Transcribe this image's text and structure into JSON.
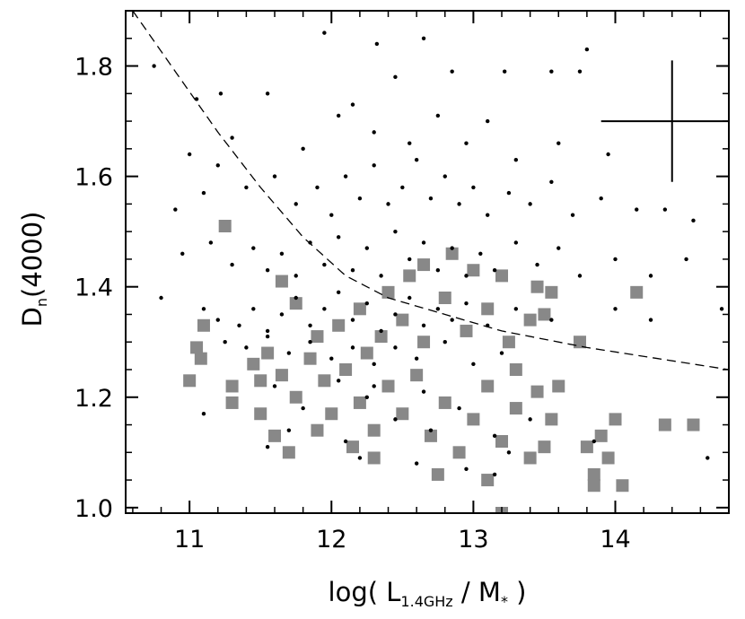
{
  "chart_data": {
    "type": "scatter",
    "title": "",
    "xlabel": {
      "prefix": "log( L",
      "sub": "1.4GHz",
      "mid": " / M",
      "sub2": "*",
      "suffix": " )"
    },
    "ylabel": {
      "prefix": "D",
      "sub": "n",
      "suffix": "(4000)"
    },
    "xlim": [
      10.55,
      14.8
    ],
    "ylim": [
      0.99,
      1.9
    ],
    "xticks": [
      {
        "value": 11,
        "label": "11"
      },
      {
        "value": 12,
        "label": "12"
      },
      {
        "value": 13,
        "label": "13"
      },
      {
        "value": 14,
        "label": "14"
      }
    ],
    "yticks": [
      {
        "value": 1.0,
        "label": "1.0"
      },
      {
        "value": 1.2,
        "label": "1.2"
      },
      {
        "value": 1.4,
        "label": "1.4"
      },
      {
        "value": 1.6,
        "label": "1.6"
      },
      {
        "value": 1.8,
        "label": "1.8"
      }
    ],
    "grid": false,
    "dashed_line": [
      [
        10.6,
        1.9
      ],
      [
        10.9,
        1.79
      ],
      [
        11.2,
        1.68
      ],
      [
        11.5,
        1.58
      ],
      [
        11.8,
        1.49
      ],
      [
        12.1,
        1.42
      ],
      [
        12.4,
        1.38
      ],
      [
        12.8,
        1.35
      ],
      [
        13.2,
        1.32
      ],
      [
        13.8,
        1.29
      ],
      [
        14.3,
        1.27
      ],
      [
        14.8,
        1.25
      ]
    ],
    "error_bar": {
      "x": 14.4,
      "y": 1.7,
      "x_err": 0.5,
      "y_err": 0.11
    },
    "series": [
      {
        "marker": "dot",
        "color": "#000000",
        "points": [
          [
            10.75,
            1.8
          ],
          [
            11.05,
            1.74
          ],
          [
            11.22,
            1.75
          ],
          [
            11.55,
            1.75
          ],
          [
            11.95,
            1.86
          ],
          [
            12.32,
            1.84
          ],
          [
            12.45,
            1.78
          ],
          [
            12.65,
            1.85
          ],
          [
            12.85,
            1.79
          ],
          [
            13.22,
            1.79
          ],
          [
            13.55,
            1.79
          ],
          [
            13.75,
            1.79
          ],
          [
            13.8,
            1.83
          ],
          [
            11.0,
            1.64
          ],
          [
            11.3,
            1.67
          ],
          [
            11.8,
            1.65
          ],
          [
            12.05,
            1.71
          ],
          [
            12.15,
            1.73
          ],
          [
            12.3,
            1.68
          ],
          [
            12.55,
            1.66
          ],
          [
            12.75,
            1.71
          ],
          [
            12.95,
            1.66
          ],
          [
            13.1,
            1.7
          ],
          [
            13.3,
            1.63
          ],
          [
            13.6,
            1.66
          ],
          [
            13.95,
            1.64
          ],
          [
            10.9,
            1.54
          ],
          [
            11.1,
            1.57
          ],
          [
            11.2,
            1.62
          ],
          [
            11.4,
            1.58
          ],
          [
            11.6,
            1.6
          ],
          [
            11.75,
            1.55
          ],
          [
            11.9,
            1.58
          ],
          [
            12.0,
            1.53
          ],
          [
            12.1,
            1.6
          ],
          [
            12.2,
            1.56
          ],
          [
            12.3,
            1.62
          ],
          [
            12.4,
            1.55
          ],
          [
            12.5,
            1.58
          ],
          [
            12.6,
            1.63
          ],
          [
            12.7,
            1.56
          ],
          [
            12.8,
            1.6
          ],
          [
            12.9,
            1.55
          ],
          [
            13.0,
            1.58
          ],
          [
            13.1,
            1.53
          ],
          [
            13.25,
            1.57
          ],
          [
            13.4,
            1.55
          ],
          [
            13.55,
            1.59
          ],
          [
            13.7,
            1.53
          ],
          [
            13.9,
            1.56
          ],
          [
            14.15,
            1.54
          ],
          [
            14.35,
            1.54
          ],
          [
            14.55,
            1.52
          ],
          [
            10.95,
            1.46
          ],
          [
            11.15,
            1.48
          ],
          [
            11.3,
            1.44
          ],
          [
            11.45,
            1.47
          ],
          [
            11.55,
            1.43
          ],
          [
            11.65,
            1.46
          ],
          [
            11.75,
            1.42
          ],
          [
            11.85,
            1.48
          ],
          [
            11.95,
            1.44
          ],
          [
            12.05,
            1.49
          ],
          [
            12.15,
            1.43
          ],
          [
            12.25,
            1.47
          ],
          [
            12.35,
            1.42
          ],
          [
            12.45,
            1.5
          ],
          [
            12.55,
            1.45
          ],
          [
            12.65,
            1.48
          ],
          [
            12.75,
            1.43
          ],
          [
            12.85,
            1.47
          ],
          [
            12.95,
            1.42
          ],
          [
            13.05,
            1.46
          ],
          [
            13.15,
            1.43
          ],
          [
            13.3,
            1.48
          ],
          [
            13.45,
            1.44
          ],
          [
            13.6,
            1.47
          ],
          [
            13.75,
            1.42
          ],
          [
            14.0,
            1.45
          ],
          [
            14.25,
            1.42
          ],
          [
            14.5,
            1.45
          ],
          [
            10.8,
            1.38
          ],
          [
            11.1,
            1.36
          ],
          [
            11.2,
            1.34
          ],
          [
            11.35,
            1.33
          ],
          [
            11.45,
            1.36
          ],
          [
            11.55,
            1.32
          ],
          [
            11.65,
            1.35
          ],
          [
            11.75,
            1.38
          ],
          [
            11.85,
            1.33
          ],
          [
            11.95,
            1.36
          ],
          [
            12.05,
            1.39
          ],
          [
            12.15,
            1.34
          ],
          [
            12.25,
            1.37
          ],
          [
            12.35,
            1.32
          ],
          [
            12.45,
            1.35
          ],
          [
            12.55,
            1.38
          ],
          [
            12.65,
            1.33
          ],
          [
            12.75,
            1.36
          ],
          [
            12.85,
            1.34
          ],
          [
            12.95,
            1.37
          ],
          [
            13.1,
            1.33
          ],
          [
            13.3,
            1.36
          ],
          [
            13.55,
            1.34
          ],
          [
            14.0,
            1.36
          ],
          [
            14.25,
            1.34
          ],
          [
            14.75,
            1.36
          ],
          [
            11.25,
            1.3
          ],
          [
            11.4,
            1.29
          ],
          [
            11.55,
            1.31
          ],
          [
            11.7,
            1.28
          ],
          [
            11.85,
            1.3
          ],
          [
            12.0,
            1.27
          ],
          [
            12.15,
            1.29
          ],
          [
            12.3,
            1.26
          ],
          [
            12.45,
            1.29
          ],
          [
            12.6,
            1.27
          ],
          [
            12.8,
            1.3
          ],
          [
            13.0,
            1.26
          ],
          [
            13.2,
            1.28
          ],
          [
            11.1,
            1.17
          ],
          [
            11.6,
            1.22
          ],
          [
            11.8,
            1.18
          ],
          [
            12.05,
            1.23
          ],
          [
            12.25,
            1.2
          ],
          [
            12.45,
            1.16
          ],
          [
            12.65,
            1.21
          ],
          [
            12.9,
            1.18
          ],
          [
            13.15,
            1.13
          ],
          [
            13.4,
            1.16
          ],
          [
            11.55,
            1.11
          ],
          [
            12.1,
            1.12
          ],
          [
            12.7,
            1.14
          ],
          [
            13.25,
            1.1
          ],
          [
            11.7,
            1.14
          ],
          [
            12.3,
            1.22
          ],
          [
            14.65,
            1.09
          ],
          [
            13.85,
            1.12
          ],
          [
            12.95,
            1.07
          ],
          [
            12.2,
            1.09
          ],
          [
            12.6,
            1.08
          ],
          [
            13.15,
            1.06
          ]
        ]
      },
      {
        "marker": "square",
        "color": "#888888",
        "points": [
          [
            11.25,
            1.51
          ],
          [
            11.1,
            1.33
          ],
          [
            11.05,
            1.29
          ],
          [
            11.0,
            1.23
          ],
          [
            11.08,
            1.27
          ],
          [
            11.3,
            1.19
          ],
          [
            11.3,
            1.22
          ],
          [
            11.45,
            1.26
          ],
          [
            11.55,
            1.28
          ],
          [
            11.5,
            1.17
          ],
          [
            11.65,
            1.24
          ],
          [
            11.75,
            1.2
          ],
          [
            11.85,
            1.27
          ],
          [
            11.6,
            1.13
          ],
          [
            11.7,
            1.1
          ],
          [
            11.95,
            1.23
          ],
          [
            12.0,
            1.17
          ],
          [
            12.1,
            1.25
          ],
          [
            12.2,
            1.19
          ],
          [
            12.3,
            1.14
          ],
          [
            12.15,
            1.11
          ],
          [
            12.25,
            1.28
          ],
          [
            12.4,
            1.22
          ],
          [
            12.5,
            1.17
          ],
          [
            12.6,
            1.24
          ],
          [
            12.7,
            1.13
          ],
          [
            12.8,
            1.19
          ],
          [
            12.9,
            1.1
          ],
          [
            13.0,
            1.16
          ],
          [
            13.1,
            1.22
          ],
          [
            13.2,
            1.12
          ],
          [
            13.3,
            1.18
          ],
          [
            13.4,
            1.09
          ],
          [
            13.5,
            1.11
          ],
          [
            12.05,
            1.33
          ],
          [
            12.2,
            1.36
          ],
          [
            12.35,
            1.31
          ],
          [
            12.5,
            1.34
          ],
          [
            12.65,
            1.3
          ],
          [
            12.8,
            1.38
          ],
          [
            12.95,
            1.32
          ],
          [
            13.1,
            1.36
          ],
          [
            13.25,
            1.3
          ],
          [
            13.4,
            1.34
          ],
          [
            11.75,
            1.37
          ],
          [
            11.9,
            1.31
          ],
          [
            11.65,
            1.41
          ],
          [
            12.85,
            1.46
          ],
          [
            13.0,
            1.43
          ],
          [
            13.2,
            1.42
          ],
          [
            13.45,
            1.4
          ],
          [
            13.5,
            1.35
          ],
          [
            13.55,
            1.39
          ],
          [
            12.55,
            1.42
          ],
          [
            12.4,
            1.39
          ],
          [
            12.65,
            1.44
          ],
          [
            13.75,
            1.3
          ],
          [
            14.15,
            1.39
          ],
          [
            13.6,
            1.22
          ],
          [
            14.0,
            1.16
          ],
          [
            13.9,
            1.13
          ],
          [
            13.8,
            1.11
          ],
          [
            13.95,
            1.09
          ],
          [
            13.85,
            1.06
          ],
          [
            13.85,
            1.04
          ],
          [
            14.05,
            1.04
          ],
          [
            14.35,
            1.15
          ],
          [
            14.55,
            1.15
          ],
          [
            13.55,
            1.16
          ],
          [
            13.45,
            1.21
          ],
          [
            13.3,
            1.25
          ],
          [
            12.75,
            1.06
          ],
          [
            13.1,
            1.05
          ],
          [
            12.3,
            1.09
          ],
          [
            13.2,
            0.99
          ],
          [
            11.5,
            1.23
          ],
          [
            11.9,
            1.14
          ]
        ]
      }
    ]
  }
}
